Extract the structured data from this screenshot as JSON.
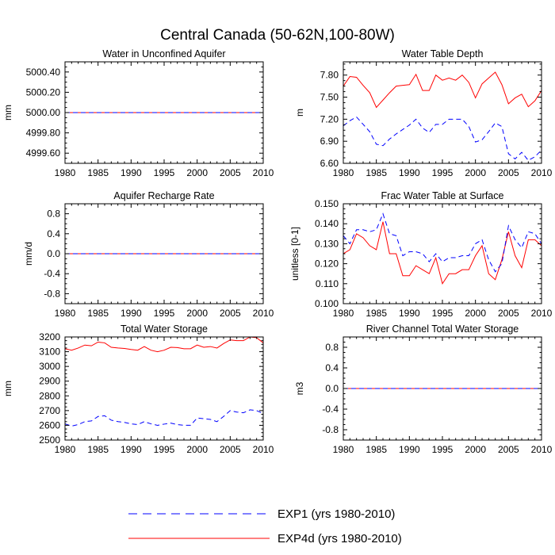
{
  "title": "Central Canada (50-62N,100-80W)",
  "legend": {
    "placement": "bottom-center",
    "entries": [
      {
        "label": "EXP1 (yrs 1980-2010)",
        "color": "#0000ff",
        "style": "dashed"
      },
      {
        "label": "EXP4d (yrs 1980-2010)",
        "color": "#ff0000",
        "style": "solid"
      }
    ]
  },
  "chart_data": [
    {
      "type": "line",
      "title": "Water in Unconfined Aquifer",
      "ylabel": "mm",
      "xlim": [
        1980,
        2010
      ],
      "ylim": [
        4999.5,
        5000.5
      ],
      "xticks": [
        1980,
        1985,
        1990,
        1995,
        2000,
        2005,
        2010
      ],
      "yticks": [
        4999.6,
        4999.8,
        5000.0,
        5000.2,
        5000.4
      ],
      "ytick_labels": [
        "4999.60",
        "4999.80",
        "5000.00",
        "5000.20",
        "5000.40"
      ],
      "x": [
        1980,
        1985,
        1990,
        1995,
        2000,
        2005,
        2010
      ],
      "series": [
        {
          "name": "EXP4d",
          "color": "#ff0000",
          "dash": false,
          "values": [
            5000,
            5000,
            5000,
            5000,
            5000,
            5000,
            5000
          ]
        },
        {
          "name": "EXP1",
          "color": "#0000ff",
          "dash": true,
          "values": [
            5000,
            5000,
            5000,
            5000,
            5000,
            5000,
            5000
          ]
        }
      ]
    },
    {
      "type": "line",
      "title": "Water Table Depth",
      "ylabel": "m",
      "xlim": [
        1980,
        2010
      ],
      "ylim": [
        6.6,
        7.98
      ],
      "xticks": [
        1980,
        1985,
        1990,
        1995,
        2000,
        2005,
        2010
      ],
      "yticks": [
        6.6,
        6.9,
        7.2,
        7.5,
        7.8
      ],
      "ytick_labels": [
        "6.60",
        "6.90",
        "7.20",
        "7.50",
        "7.80"
      ],
      "x": [
        1980,
        1981,
        1982,
        1983,
        1984,
        1985,
        1986,
        1987,
        1988,
        1989,
        1990,
        1991,
        1992,
        1993,
        1994,
        1995,
        1996,
        1997,
        1998,
        1999,
        2000,
        2001,
        2002,
        2003,
        2004,
        2005,
        2006,
        2007,
        2008,
        2009,
        2010
      ],
      "series": [
        {
          "name": "EXP4d",
          "color": "#ff0000",
          "dash": false,
          "values": [
            7.65,
            7.78,
            7.77,
            7.66,
            7.56,
            7.36,
            7.46,
            7.56,
            7.65,
            7.66,
            7.67,
            7.81,
            7.59,
            7.59,
            7.8,
            7.73,
            7.76,
            7.73,
            7.8,
            7.7,
            7.49,
            7.68,
            7.76,
            7.84,
            7.67,
            7.41,
            7.49,
            7.54,
            7.37,
            7.45,
            7.59
          ]
        },
        {
          "name": "EXP1",
          "color": "#0000ff",
          "dash": true,
          "values": [
            7.11,
            7.18,
            7.23,
            7.13,
            7.03,
            6.86,
            6.84,
            6.93,
            7.0,
            7.06,
            7.12,
            7.2,
            7.08,
            7.02,
            7.13,
            7.13,
            7.2,
            7.2,
            7.2,
            7.1,
            6.89,
            6.92,
            7.03,
            7.15,
            7.1,
            6.73,
            6.66,
            6.75,
            6.64,
            6.69,
            6.78
          ]
        }
      ]
    },
    {
      "type": "line",
      "title": "Aquifer Recharge Rate",
      "ylabel": "mm/d",
      "xlim": [
        1980,
        2010
      ],
      "ylim": [
        -1.0,
        1.0
      ],
      "xticks": [
        1980,
        1985,
        1990,
        1995,
        2000,
        2005,
        2010
      ],
      "yticks": [
        -0.8,
        -0.4,
        0.0,
        0.4,
        0.8
      ],
      "ytick_labels": [
        "-0.8",
        "-0.4",
        "0.0",
        "0.4",
        "0.8"
      ],
      "x": [
        1980,
        1985,
        1990,
        1995,
        2000,
        2005,
        2010
      ],
      "series": [
        {
          "name": "EXP4d",
          "color": "#ff0000",
          "dash": false,
          "values": [
            0,
            0,
            0,
            0,
            0,
            0,
            0
          ]
        },
        {
          "name": "EXP1",
          "color": "#0000ff",
          "dash": true,
          "values": [
            0,
            0,
            0,
            0,
            0,
            0,
            0
          ]
        }
      ]
    },
    {
      "type": "line",
      "title": "Frac Water Table at Surface",
      "ylabel": "unitless [0-1]",
      "xlim": [
        1980,
        2010
      ],
      "ylim": [
        0.1,
        0.15
      ],
      "xticks": [
        1980,
        1985,
        1990,
        1995,
        2000,
        2005,
        2010
      ],
      "yticks": [
        0.1,
        0.11,
        0.12,
        0.13,
        0.14,
        0.15
      ],
      "ytick_labels": [
        "0.100",
        "0.110",
        "0.120",
        "0.130",
        "0.140",
        "0.150"
      ],
      "x": [
        1980,
        1981,
        1982,
        1983,
        1984,
        1985,
        1986,
        1987,
        1988,
        1989,
        1990,
        1991,
        1992,
        1993,
        1994,
        1995,
        1996,
        1997,
        1998,
        1999,
        2000,
        2001,
        2002,
        2003,
        2004,
        2005,
        2006,
        2007,
        2008,
        2009,
        2010
      ],
      "series": [
        {
          "name": "EXP4d",
          "color": "#ff0000",
          "dash": false,
          "values": [
            0.125,
            0.127,
            0.135,
            0.133,
            0.129,
            0.127,
            0.141,
            0.125,
            0.125,
            0.114,
            0.114,
            0.119,
            0.117,
            0.115,
            0.123,
            0.11,
            0.115,
            0.115,
            0.117,
            0.117,
            0.124,
            0.129,
            0.115,
            0.112,
            0.122,
            0.136,
            0.124,
            0.118,
            0.132,
            0.132,
            0.129
          ]
        },
        {
          "name": "EXP1",
          "color": "#0000ff",
          "dash": true,
          "values": [
            0.134,
            0.13,
            0.137,
            0.137,
            0.136,
            0.137,
            0.145,
            0.135,
            0.134,
            0.124,
            0.126,
            0.126,
            0.125,
            0.121,
            0.125,
            0.121,
            0.123,
            0.123,
            0.124,
            0.124,
            0.13,
            0.132,
            0.122,
            0.116,
            0.12,
            0.139,
            0.132,
            0.128,
            0.136,
            0.135,
            0.13
          ]
        }
      ]
    },
    {
      "type": "line",
      "title": "Total Water Storage",
      "ylabel": "mm",
      "xlim": [
        1980,
        2010
      ],
      "ylim": [
        2500,
        3200
      ],
      "xticks": [
        1980,
        1985,
        1990,
        1995,
        2000,
        2005,
        2010
      ],
      "yticks": [
        2500,
        2600,
        2700,
        2800,
        2900,
        3000,
        3100,
        3200
      ],
      "ytick_labels": [
        "2500",
        "2600",
        "2700",
        "2800",
        "2900",
        "3000",
        "3100",
        "3200"
      ],
      "x": [
        1980,
        1981,
        1982,
        1983,
        1984,
        1985,
        1986,
        1987,
        1988,
        1989,
        1990,
        1991,
        1992,
        1993,
        1994,
        1995,
        1996,
        1997,
        1998,
        1999,
        2000,
        2001,
        2002,
        2003,
        2004,
        2005,
        2006,
        2007,
        2008,
        2009,
        2010
      ],
      "series": [
        {
          "name": "EXP4d",
          "color": "#ff0000",
          "dash": false,
          "values": [
            3120,
            3110,
            3125,
            3145,
            3140,
            3165,
            3160,
            3130,
            3125,
            3122,
            3115,
            3110,
            3135,
            3110,
            3100,
            3110,
            3130,
            3128,
            3120,
            3120,
            3145,
            3130,
            3135,
            3125,
            3155,
            3180,
            3175,
            3175,
            3200,
            3195,
            3160
          ]
        },
        {
          "name": "EXP1",
          "color": "#0000ff",
          "dash": true,
          "values": [
            2610,
            2595,
            2605,
            2625,
            2630,
            2660,
            2665,
            2635,
            2625,
            2620,
            2610,
            2605,
            2625,
            2610,
            2600,
            2608,
            2615,
            2605,
            2600,
            2600,
            2650,
            2645,
            2640,
            2625,
            2660,
            2700,
            2690,
            2685,
            2705,
            2700,
            2680
          ]
        }
      ]
    },
    {
      "type": "line",
      "title": "River Channel Total Water Storage",
      "ylabel": "m3",
      "xlim": [
        1980,
        2010
      ],
      "ylim": [
        -1.0,
        1.0
      ],
      "xticks": [
        1980,
        1985,
        1990,
        1995,
        2000,
        2005,
        2010
      ],
      "yticks": [
        -0.8,
        -0.4,
        0.0,
        0.4,
        0.8
      ],
      "ytick_labels": [
        "-0.8",
        "-0.4",
        "0.0",
        "0.4",
        "0.8"
      ],
      "x": [
        1980,
        1985,
        1990,
        1995,
        2000,
        2005,
        2010
      ],
      "series": [
        {
          "name": "EXP4d",
          "color": "#ff0000",
          "dash": false,
          "values": [
            0,
            0,
            0,
            0,
            0,
            0,
            0
          ]
        },
        {
          "name": "EXP1",
          "color": "#0000ff",
          "dash": true,
          "values": [
            0,
            0,
            0,
            0,
            0,
            0,
            0
          ]
        }
      ]
    }
  ]
}
